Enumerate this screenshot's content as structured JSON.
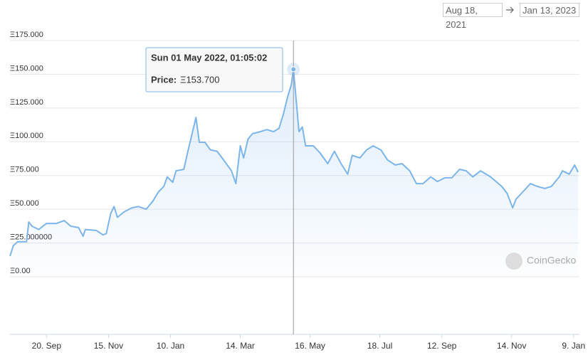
{
  "chart_data": {
    "type": "area",
    "range": {
      "from": "Aug 18, 2021",
      "to": "Jan 13, 2023"
    },
    "watermark": "CoinGecko",
    "tooltip": {
      "title": "Sun 01 May 2022, 01:05:02",
      "label": "Price:",
      "text": "Ξ153.700"
    },
    "x": [
      "2021-08-18",
      "2021-08-21",
      "2021-08-25",
      "2021-09-02",
      "2021-09-04",
      "2021-09-07",
      "2021-09-13",
      "2021-09-20",
      "2021-09-29",
      "2021-10-06",
      "2021-10-12",
      "2021-10-19",
      "2021-10-23",
      "2021-10-25",
      "2021-11-04",
      "2021-11-10",
      "2021-11-13",
      "2021-11-17",
      "2021-11-20",
      "2021-11-23",
      "2021-11-29",
      "2021-12-06",
      "2021-12-12",
      "2021-12-19",
      "2021-12-25",
      "2021-12-30",
      "2022-01-04",
      "2022-01-07",
      "2022-01-12",
      "2022-01-15",
      "2022-01-22",
      "2022-01-26",
      "2022-02-02",
      "2022-02-05",
      "2022-02-10",
      "2022-02-15",
      "2022-02-21",
      "2022-02-27",
      "2022-03-06",
      "2022-03-10",
      "2022-03-14",
      "2022-03-17",
      "2022-03-21",
      "2022-03-25",
      "2022-04-01",
      "2022-04-07",
      "2022-04-13",
      "2022-04-18",
      "2022-04-22",
      "2022-04-26",
      "2022-04-29",
      "2022-05-01",
      "2022-05-04",
      "2022-05-06",
      "2022-05-09",
      "2022-05-12",
      "2022-05-19",
      "2022-05-25",
      "2022-06-01",
      "2022-06-07",
      "2022-06-13",
      "2022-06-19",
      "2022-06-23",
      "2022-06-30",
      "2022-07-06",
      "2022-07-12",
      "2022-07-19",
      "2022-07-25",
      "2022-08-01",
      "2022-08-07",
      "2022-08-14",
      "2022-08-20",
      "2022-08-26",
      "2022-09-02",
      "2022-09-08",
      "2022-09-15",
      "2022-09-21",
      "2022-09-28",
      "2022-10-04",
      "2022-10-10",
      "2022-10-17",
      "2022-10-26",
      "2022-11-05",
      "2022-11-10",
      "2022-11-15",
      "2022-11-18",
      "2022-11-24",
      "2022-12-01",
      "2022-12-07",
      "2022-12-14",
      "2022-12-20",
      "2022-12-27",
      "2022-12-30",
      "2023-01-05",
      "2023-01-10",
      "2023-01-13"
    ],
    "series": [
      {
        "name": "Price",
        "color": "#7cb5ec",
        "values": [
          15.3,
          23,
          26,
          26,
          40.6,
          37.4,
          35,
          39.5,
          39.5,
          41.6,
          37.4,
          36.4,
          30,
          35,
          34.3,
          31,
          32,
          47,
          52,
          44,
          48,
          51,
          52,
          50,
          56,
          62.7,
          67,
          74,
          70,
          78.5,
          79.6,
          94,
          118,
          99.6,
          99.6,
          94,
          93,
          86.5,
          78.5,
          69,
          97,
          88,
          102,
          106,
          107.5,
          109,
          107.5,
          110,
          120.7,
          134,
          142,
          153.7,
          126,
          107.5,
          111,
          97,
          97,
          91.7,
          83.8,
          93,
          83.8,
          76,
          90,
          88,
          94,
          97,
          94,
          86.5,
          82.8,
          83.8,
          78.5,
          69,
          69,
          74,
          70.6,
          73.3,
          73.3,
          79.6,
          78.5,
          74,
          78.5,
          74,
          67,
          61.7,
          51,
          57.5,
          62.7,
          69,
          67,
          65.4,
          67,
          74,
          78.5,
          76,
          82.8,
          77.5
        ]
      }
    ],
    "xlim": [
      "2021-08-18",
      "2023-01-13"
    ],
    "xticks": [
      {
        "value": "2021-09-20",
        "label": "20. Sep"
      },
      {
        "value": "2021-11-15",
        "label": "15. Nov"
      },
      {
        "value": "2022-01-10",
        "label": "10. Jan"
      },
      {
        "value": "2022-03-14",
        "label": "14. Mar"
      },
      {
        "value": "2022-05-16",
        "label": "16. May"
      },
      {
        "value": "2022-07-18",
        "label": "18. Jul"
      },
      {
        "value": "2022-09-12",
        "label": "12. Sep"
      },
      {
        "value": "2022-11-14",
        "label": "14. Nov"
      },
      {
        "value": "2023-01-09",
        "label": "9. Jan"
      }
    ],
    "ylim": [
      -42.7,
      175
    ],
    "yticks": [
      {
        "value": 0,
        "label": "Ξ0.00"
      },
      {
        "value": 25,
        "label": "Ξ25.000000"
      },
      {
        "value": 50,
        "label": "Ξ50.000"
      },
      {
        "value": 75,
        "label": "Ξ75.000"
      },
      {
        "value": 100,
        "label": "Ξ100.000"
      },
      {
        "value": 125,
        "label": "Ξ125.000"
      },
      {
        "value": 150,
        "label": "Ξ150.000"
      },
      {
        "value": 175,
        "label": "Ξ175.000"
      }
    ],
    "grid": true
  }
}
